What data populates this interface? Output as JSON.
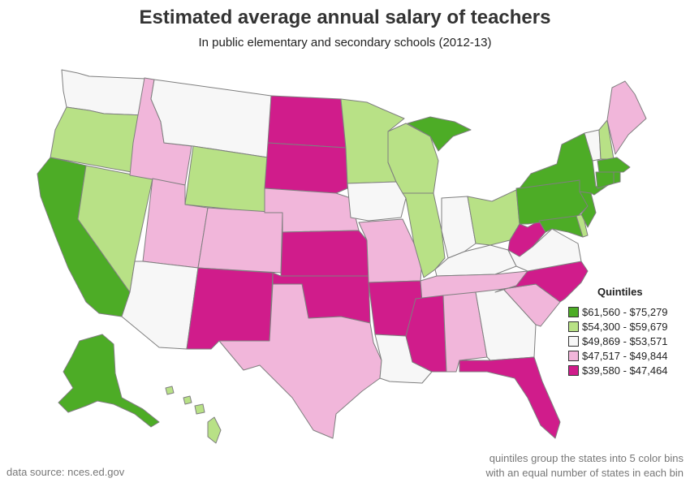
{
  "title": "Estimated average annual salary of teachers",
  "subtitle": "In public elementary and secondary schools (2012-13)",
  "legend": {
    "title": "Quintiles",
    "items": [
      {
        "label": "$61,560 - $75,279",
        "color": "#4dac26"
      },
      {
        "label": "$54,300 - $59,679",
        "color": "#b8e186"
      },
      {
        "label": "$49,869 - $53,571",
        "color": "#f7f7f7"
      },
      {
        "label": "$47,517 - $49,844",
        "color": "#f1b6da"
      },
      {
        "label": "$39,580 - $47,464",
        "color": "#d01c8b"
      }
    ]
  },
  "source": "data source: nces.ed.gov",
  "note_line1": "quintiles group the states into 5 color bins",
  "note_line2": "with an equal number of states in each bin",
  "state_quintiles": {
    "WA": 2,
    "OR": 1,
    "CA": 0,
    "NV": 1,
    "ID": 3,
    "MT": 2,
    "WY": 1,
    "UT": 3,
    "AZ": 2,
    "CO": 3,
    "NM": 4,
    "ND": 4,
    "SD": 4,
    "NE": 3,
    "KS": 4,
    "OK": 4,
    "TX": 3,
    "MN": 1,
    "IA": 2,
    "MO": 3,
    "AR": 4,
    "LA": 2,
    "WI": 1,
    "IL": 1,
    "MI": 0,
    "IN": 2,
    "OH": 1,
    "KY": 2,
    "TN": 3,
    "MS": 4,
    "AL": 3,
    "GA": 2,
    "FL": 4,
    "SC": 3,
    "NC": 4,
    "VA": 2,
    "WV": 4,
    "MD": 0,
    "DE": 1,
    "PA": 0,
    "NJ": 0,
    "NY": 0,
    "CT": 0,
    "RI": 0,
    "MA": 0,
    "VT": 2,
    "NH": 1,
    "ME": 3,
    "AK": 0,
    "HI": 1,
    "DC": 0
  }
}
